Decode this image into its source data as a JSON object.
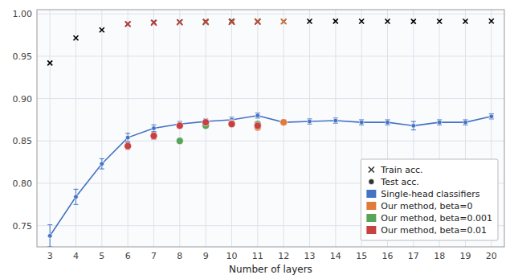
{
  "chart_data": {
    "type": "line",
    "xlabel": "Number of layers",
    "series": [
      {
        "name": "Single-head classifiers",
        "color": "#4472C4",
        "line_style": "solid",
        "x": [
          3,
          4,
          5,
          6,
          7,
          8,
          9,
          10,
          11,
          12,
          13,
          14,
          15,
          16,
          17,
          18,
          19,
          20
        ],
        "values": [
          0.738,
          0.784,
          0.823,
          0.854,
          0.865,
          0.87,
          0.873,
          0.875,
          0.88,
          0.872,
          0.873,
          0.874,
          0.872,
          0.872,
          0.868,
          0.872,
          0.872,
          0.879
        ],
        "errors": [
          0.013,
          0.009,
          0.006,
          0.005,
          0.004,
          0.003,
          0.003,
          0.003,
          0.003,
          0.003,
          0.003,
          0.003,
          0.003,
          0.003,
          0.005,
          0.003,
          0.003,
          0.003
        ],
        "train_values": [
          0.942,
          0.9715,
          0.981,
          0.988,
          0.99,
          0.9905,
          0.991,
          0.9915,
          0.991,
          0.991,
          0.9912,
          0.9913,
          0.9912,
          0.9912,
          0.9911,
          0.9912,
          0.9912,
          0.9915
        ],
        "train_color": "#000000"
      },
      {
        "name": "Our method, beta=0",
        "color": "#E07B39",
        "x": [
          9,
          10,
          11,
          12
        ],
        "values": [
          0.87,
          0.871,
          0.866,
          0.872
        ],
        "errors": [
          0.003,
          0.003,
          0.003,
          0.003
        ],
        "train_values": [
          0.9905,
          0.9907,
          0.9915,
          0.991
        ]
      },
      {
        "name": "Our method, beta=0.001",
        "color": "#5AA45A",
        "x": [
          8,
          9,
          10,
          11
        ],
        "values": [
          0.85,
          0.868,
          0.87,
          0.87
        ],
        "errors": [
          0.003,
          0.003,
          0.003,
          0.003
        ],
        "train_values": [
          0.99,
          0.99,
          0.9905,
          0.991
        ]
      },
      {
        "name": "Our method, beta=0.01",
        "color": "#C84040",
        "x": [
          6,
          7,
          8,
          9,
          10,
          11
        ],
        "values": [
          0.844,
          0.856,
          0.868,
          0.872,
          0.87,
          0.868
        ],
        "errors": [
          0.004,
          0.004,
          0.003,
          0.003,
          0.003,
          0.003
        ],
        "train_values": [
          0.988,
          0.9895,
          0.99,
          0.9905,
          0.9905,
          0.9905
        ]
      }
    ],
    "marker_legend": [
      {
        "name": "Train acc.",
        "marker": "x"
      },
      {
        "name": "Test acc.",
        "marker": "circle"
      }
    ],
    "xlim": [
      2.5,
      20.5
    ],
    "xticks": [
      3,
      4,
      5,
      6,
      7,
      8,
      9,
      10,
      11,
      12,
      13,
      14,
      15,
      16,
      17,
      18,
      19,
      20
    ],
    "ylim": [
      0.725,
      1.005
    ],
    "yticks": [
      0.75,
      {
        "value": 0.8,
        "label": "0.80"
      },
      0.85,
      {
        "value": 0.9,
        "label": "0.90"
      },
      0.95,
      {
        "value": 1.0,
        "label": "1.00"
      }
    ],
    "grid": true,
    "legend": "lower right"
  }
}
